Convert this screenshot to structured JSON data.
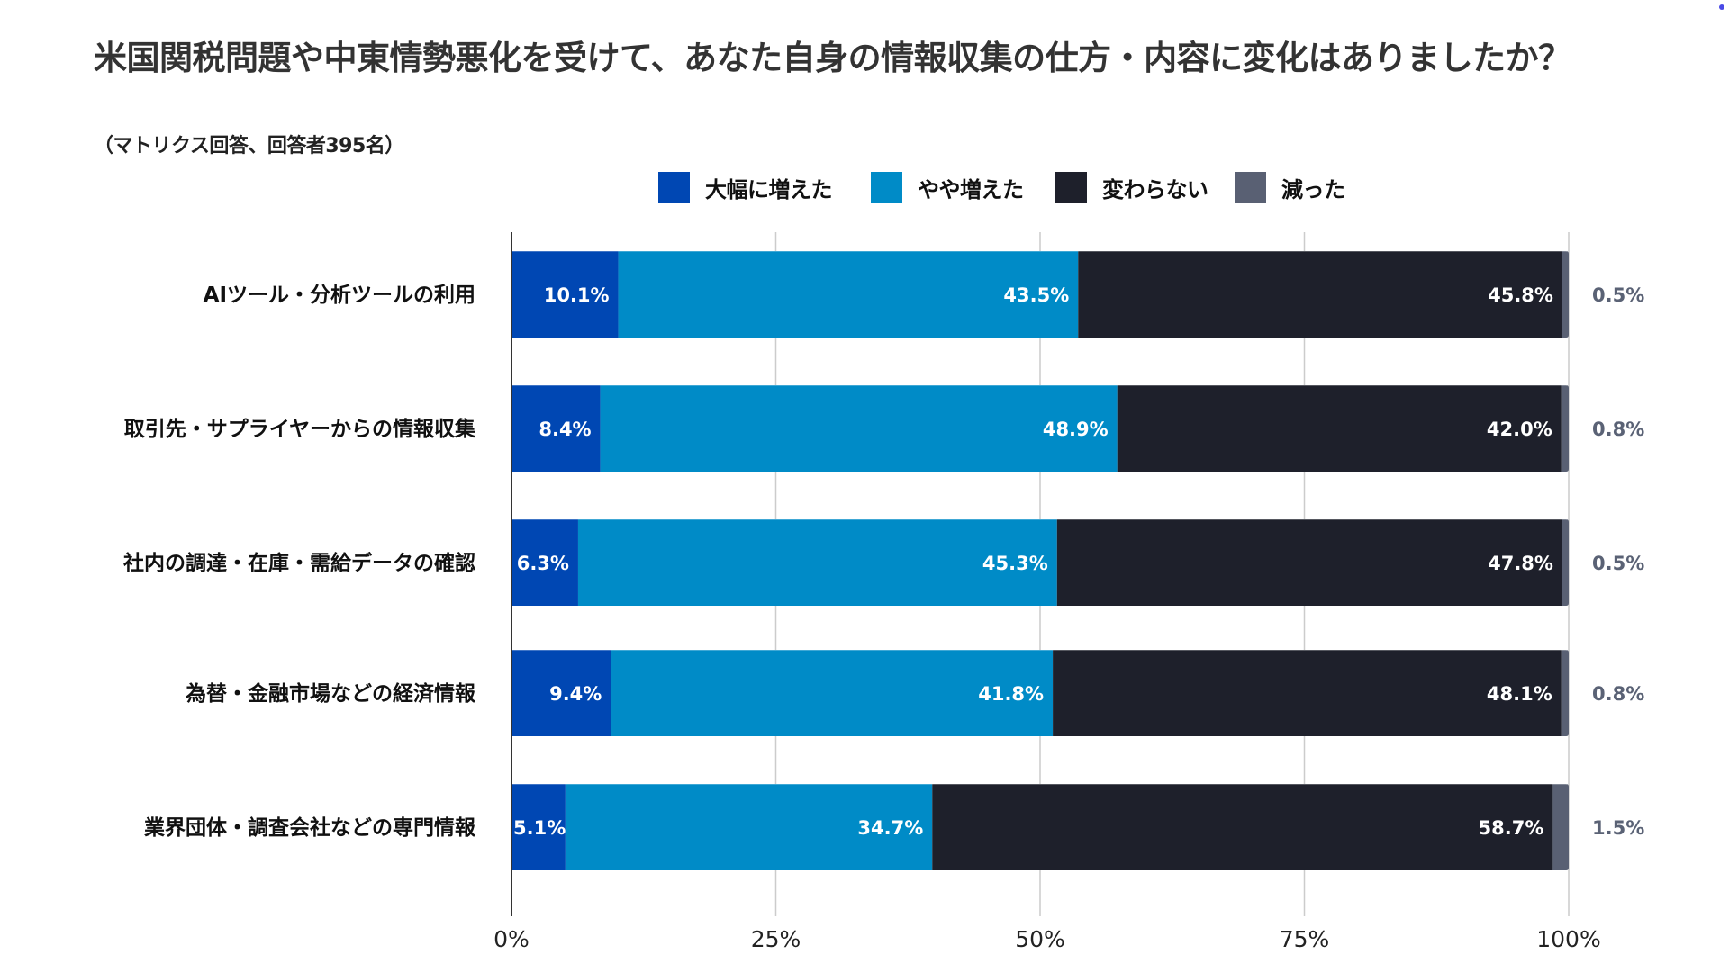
{
  "chart_data": {
    "type": "bar",
    "orientation": "horizontal",
    "stacked": true,
    "title": "米国関税問題や中東情勢悪化を受けて、あなた自身の情報収集の仕方・内容に変化はありましたか？",
    "subtitle": "（マトリクス回答、回答者395名）",
    "categories": [
      "AIツール・分析ツールの利用",
      "取引先・サプライヤーからの情報収集",
      "社内の調達・在庫・需給データの確認",
      "為替・金融市場などの経済情報",
      "業界団体・調査会社などの専門情報"
    ],
    "series": [
      {
        "name": "大幅に増えた",
        "color": "#0047b3",
        "values": [
          10.1,
          8.4,
          6.3,
          9.4,
          5.1
        ],
        "labels": [
          "10.1%",
          "8.4%",
          "6.3%",
          "9.4%",
          "5.1%"
        ]
      },
      {
        "name": "やや増えた",
        "color": "#008bc7",
        "values": [
          43.5,
          48.9,
          45.3,
          41.8,
          34.7
        ],
        "labels": [
          "43.5%",
          "48.9%",
          "45.3%",
          "41.8%",
          "34.7%"
        ]
      },
      {
        "name": "変わらない",
        "color": "#1e202b",
        "values": [
          45.8,
          42.0,
          47.8,
          48.1,
          58.7
        ],
        "labels": [
          "45.8%",
          "42.0%",
          "47.8%",
          "48.1%",
          "58.7%"
        ]
      },
      {
        "name": "減った",
        "color": "#596073",
        "values": [
          0.5,
          0.8,
          0.5,
          0.8,
          1.5
        ],
        "labels": [
          "0.5%",
          "0.8%",
          "0.5%",
          "0.8%",
          "1.5%"
        ]
      }
    ],
    "xlim": [
      0,
      100
    ],
    "xticks": [
      0,
      25,
      50,
      75,
      100
    ],
    "xtick_labels": [
      "0%",
      "25%",
      "50%",
      "75%",
      "100%"
    ],
    "xlabel": "",
    "ylabel": "",
    "grid": true,
    "legend_position": "top-center"
  },
  "colors": {
    "title_text": "#333333",
    "gridline": "#cccccc",
    "axis_line": "#333333",
    "outside_label": "#5a6275",
    "corner_dot": "#4a4ae6"
  }
}
